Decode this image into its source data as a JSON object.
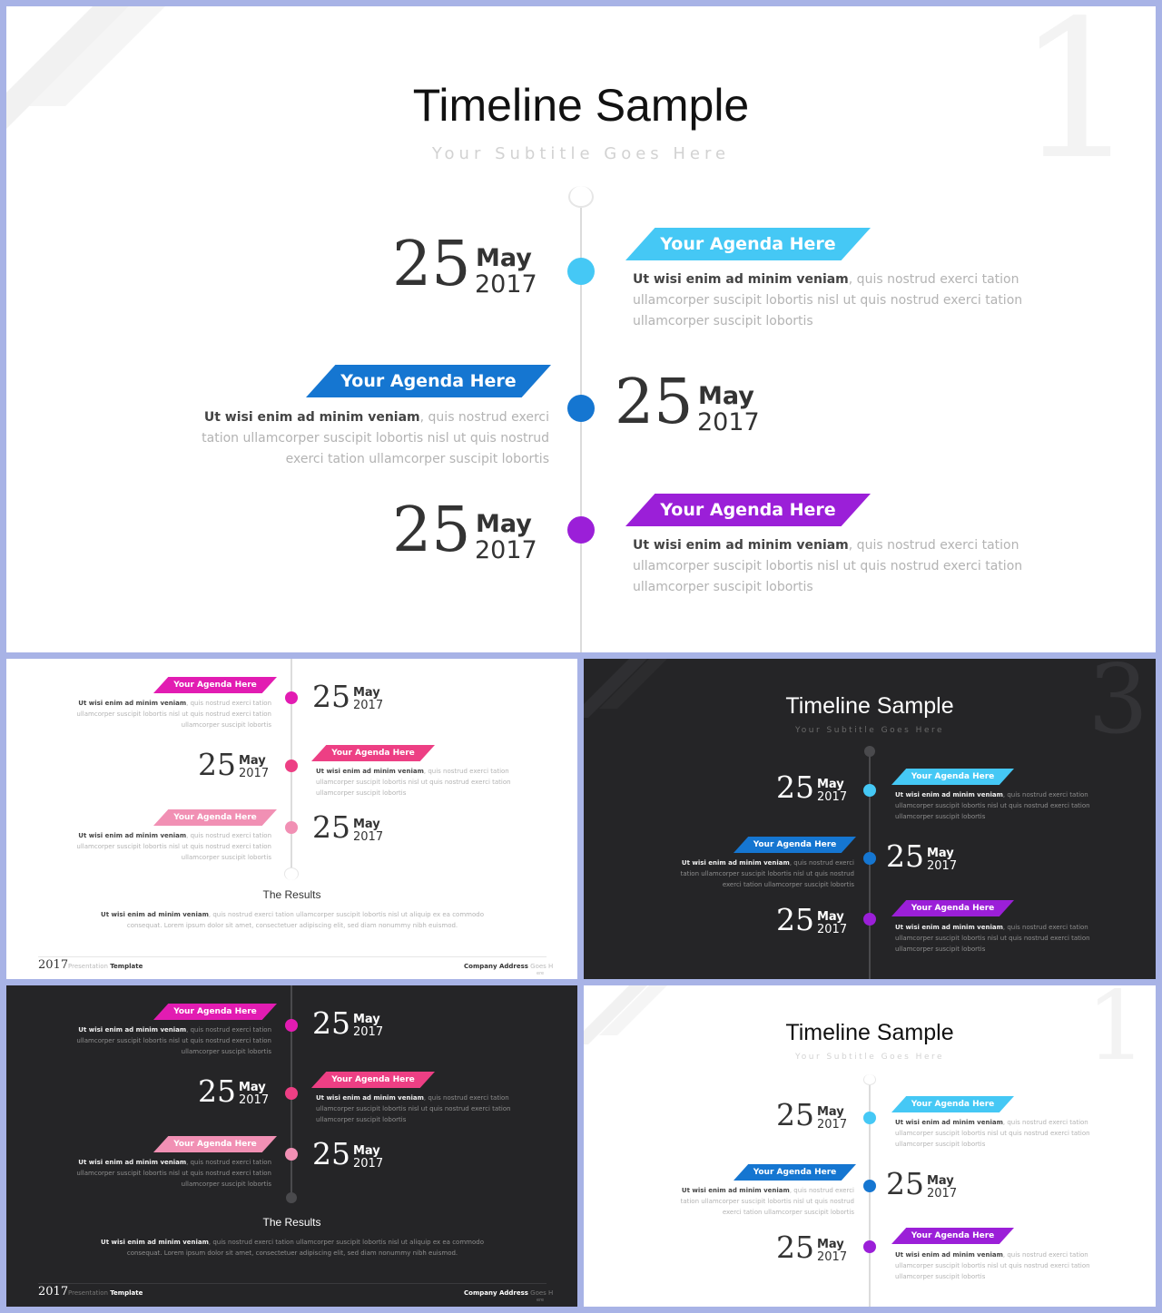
{
  "slide1": {
    "title": "Timeline Sample",
    "subtitle": "Your Subtitle Goes Here",
    "watermark": "1",
    "items": [
      {
        "day": "25",
        "month": "May",
        "year": "2017",
        "banner": "Your Agenda Here",
        "color": "#45c8f5",
        "lead": "Ut wisi enim ad minim veniam",
        "text": ", quis nostrud exerci tation ullamcorper suscipit lobortis nisl ut quis nostrud exerci tation ullamcorper suscipit lobortis"
      },
      {
        "day": "25",
        "month": "May",
        "year": "2017",
        "banner": "Your Agenda Here",
        "color": "#1576d1",
        "lead": "Ut wisi enim ad minim veniam",
        "text": ", quis nostrud exerci tation ullamcorper suscipit lobortis nisl ut quis nostrud exerci tation ullamcorper suscipit lobortis"
      },
      {
        "day": "25",
        "month": "May",
        "year": "2017",
        "banner": "Your Agenda Here",
        "color": "#9b1fd8",
        "lead": "Ut wisi enim ad minim veniam",
        "text": ", quis nostrud exerci tation ullamcorper suscipit lobortis nisl ut quis nostrud exerci tation ullamcorper suscipit lobortis"
      }
    ]
  },
  "slide2": {
    "items": [
      {
        "day": "25",
        "month": "May",
        "year": "2017",
        "banner": "Your Agenda Here",
        "color": "#e21cb2",
        "lead": "Ut wisi enim ad minim veniam",
        "text": ", quis nostrud exerci tation ullamcorper suscipit lobortis nisl ut quis nostrud exerci tation ullamcorper suscipit lobortis"
      },
      {
        "day": "25",
        "month": "May",
        "year": "2017",
        "banner": "Your Agenda Here",
        "color": "#ed3f84",
        "lead": "Ut wisi enim ad minim veniam",
        "text": ", quis nostrud exerci tation ullamcorper suscipit lobortis nisl ut quis nostrud exerci tation ullamcorper suscipit lobortis"
      },
      {
        "day": "25",
        "month": "May",
        "year": "2017",
        "banner": "Your Agenda Here",
        "color": "#f190b4",
        "lead": "Ut wisi enim ad minim veniam",
        "text": ", quis nostrud exerci tation ullamcorper suscipit lobortis nisl ut quis nostrud exerci tation ullamcorper suscipit lobortis"
      }
    ],
    "results_title": "The Results",
    "results_lead": "Ut wisi enim ad minim veniam",
    "results_text": ", quis nostrud exerci tation ullamcorper suscipit lobortis nisl ut aliquip ex ea commodo consequat. Lorem ipsum dolor sit amet, consectetuer adipiscing elit, sed diam nonummy nibh euismod.",
    "footer_year": "2017",
    "footer_pres": "Presentation",
    "footer_template": "Template",
    "footer_company": "Company Address",
    "footer_goes": "Goes H",
    "footer_small": "ere"
  },
  "slide3": {
    "title": "Timeline Sample",
    "subtitle": "Your Subtitle Goes Here",
    "watermark": "3"
  },
  "slide5": {
    "title": "Timeline Sample",
    "subtitle": "Your Subtitle Goes Here",
    "watermark": "1"
  }
}
